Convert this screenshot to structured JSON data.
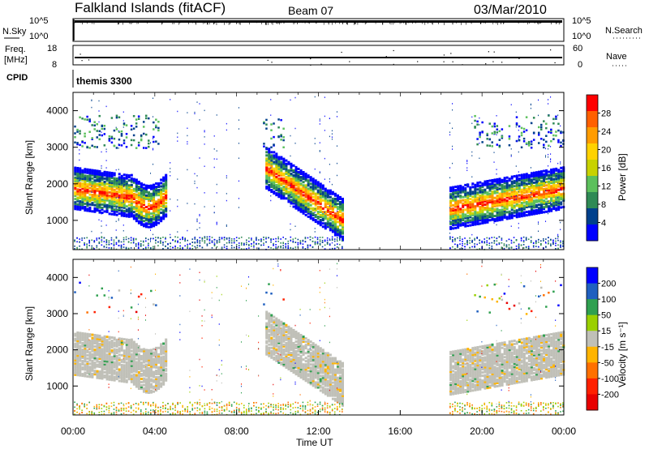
{
  "header": {
    "station": "Falkland Islands (fitACF)",
    "beam": "Beam 07",
    "date": "03/Mar/2010"
  },
  "side_labels": {
    "nsky": "N.Sky",
    "freq_line1": "Freq.",
    "freq_line2": "[MHz]",
    "cpid": "CPID",
    "nsearch": "N.Search",
    "nave": "Nave"
  },
  "program": "themis 3300",
  "x_axis": {
    "title": "Time UT",
    "ticks": [
      "00:00",
      "04:00",
      "08:00",
      "12:00",
      "16:00",
      "20:00",
      "00:00"
    ]
  },
  "chart_data": [
    {
      "type": "line",
      "title": "N.Sky / N.Search",
      "left_ticks": [
        "10^5",
        "10^0"
      ],
      "right_ticks": [
        "10^5",
        "10^0"
      ]
    },
    {
      "type": "scatter",
      "title": "Freq. / Nave",
      "left_ticks": [
        "18",
        "8"
      ],
      "right_ticks": [
        "60",
        "0"
      ]
    },
    {
      "type": "heatmap",
      "ylabel": "Slant Range [km]",
      "yticks": [
        "4000",
        "3000",
        "2000",
        "1000"
      ],
      "ylim": [
        200,
        4500
      ],
      "xlim": [
        0,
        24
      ],
      "colorbar": {
        "label": "Power [dB]",
        "ticks": [
          "28",
          "24",
          "20",
          "16",
          "12",
          "8",
          "4"
        ],
        "colors": [
          "#ff0000",
          "#ff6000",
          "#ff9c00",
          "#ffd200",
          "#c8d200",
          "#5cc05c",
          "#2f8a55",
          "#00408c",
          "#0000ff"
        ]
      },
      "data_gaps": [
        [
          13.2,
          18.4
        ]
      ]
    },
    {
      "type": "heatmap",
      "ylabel": "Slant Range [km]",
      "yticks": [
        "4000",
        "3000",
        "2000",
        "1000"
      ],
      "ylim": [
        200,
        4500
      ],
      "xlim": [
        0,
        24
      ],
      "colorbar": {
        "label": "Velocity [m s⁻¹]",
        "ticks": [
          "200",
          "100",
          "50",
          "15",
          "-15",
          "-50",
          "-100",
          "-200"
        ],
        "colors": [
          "#0000ff",
          "#2060c0",
          "#2fa050",
          "#9ad000",
          "#c0c0b8",
          "#ffb400",
          "#ff7000",
          "#ff2000",
          "#e80000"
        ]
      },
      "data_gaps": [
        [
          13.2,
          18.4
        ]
      ]
    }
  ]
}
